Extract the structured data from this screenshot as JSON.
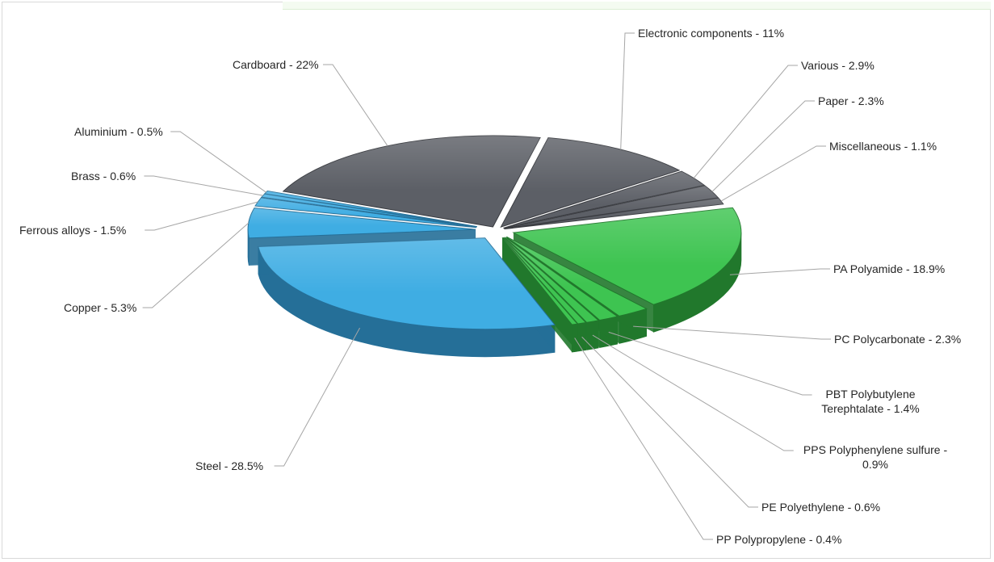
{
  "chart_data": {
    "type": "pie",
    "style": "3d-exploded",
    "title": "",
    "legend": "none",
    "slices": [
      {
        "label": "Electronic components - 11%",
        "name": "Electronic components",
        "value": 11,
        "group": "gray"
      },
      {
        "label": "Various - 2.9%",
        "name": "Various",
        "value": 2.9,
        "group": "gray"
      },
      {
        "label": "Paper - 2.3%",
        "name": "Paper",
        "value": 2.3,
        "group": "gray"
      },
      {
        "label": "Miscellaneous - 1.1%",
        "name": "Miscellaneous",
        "value": 1.1,
        "group": "gray"
      },
      {
        "label": "PA Polyamide - 18.9%",
        "name": "PA Polyamide",
        "value": 18.9,
        "group": "green"
      },
      {
        "label": "PC Polycarbonate - 2.3%",
        "name": "PC Polycarbonate",
        "value": 2.3,
        "group": "green"
      },
      {
        "label": "PBT Polybutylene|Terephtalate - 1.4%",
        "name": "PBT Polybutylene Terephtalate",
        "value": 1.4,
        "group": "green"
      },
      {
        "label": "PPS Polyphenylene sulfure -|0.9%",
        "name": "PPS Polyphenylene sulfure",
        "value": 0.9,
        "group": "green"
      },
      {
        "label": "PE Polyethylene - 0.6%",
        "name": "PE Polyethylene",
        "value": 0.6,
        "group": "green"
      },
      {
        "label": "PP Polypropylene - 0.4%",
        "name": "PP Polypropylene",
        "value": 0.4,
        "group": "green"
      },
      {
        "label": "Steel - 28.5%",
        "name": "Steel",
        "value": 28.5,
        "group": "blue"
      },
      {
        "label": "Copper - 5.3%",
        "name": "Copper",
        "value": 5.3,
        "group": "blue"
      },
      {
        "label": "Ferrous alloys - 1.5%",
        "name": "Ferrous alloys",
        "value": 1.5,
        "group": "blue"
      },
      {
        "label": "Brass - 0.6%",
        "name": "Brass",
        "value": 0.6,
        "group": "blue"
      },
      {
        "label": "Aluminium - 0.5%",
        "name": "Aluminium",
        "value": 0.5,
        "group": "blue"
      },
      {
        "label": "Cardboard - 22%",
        "name": "Cardboard",
        "value": 22,
        "group": "gray"
      }
    ],
    "colors": {
      "gray": {
        "top": "#5c5f66",
        "side": "#3a3c41"
      },
      "green": {
        "top": "#3ec451",
        "side": "#21782c"
      },
      "blue": {
        "top": "#3fade3",
        "side": "#256f98"
      }
    }
  }
}
